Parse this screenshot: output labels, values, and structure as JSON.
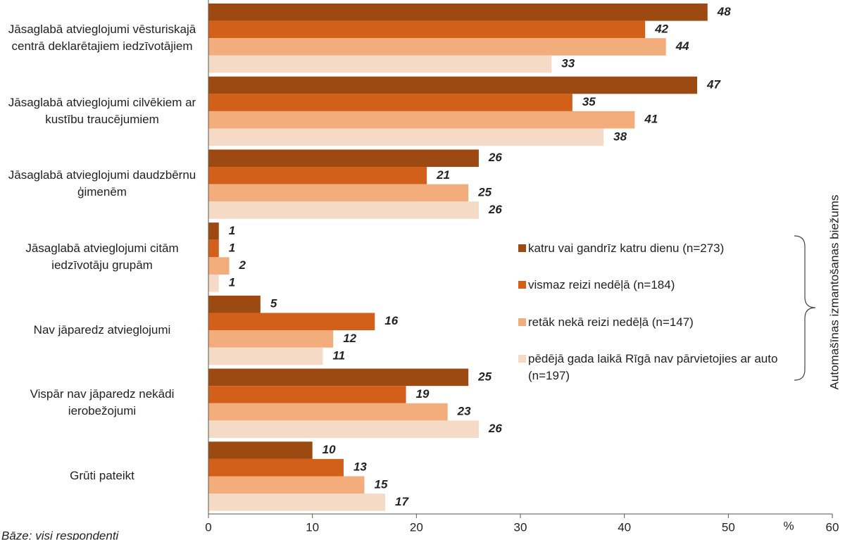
{
  "chart_data": {
    "type": "bar",
    "orientation": "horizontal",
    "categories": [
      "Jāsaglabā atvieglojumi vēsturiskajā centrā deklarētajiem iedzīvotājiem",
      "Jāsaglabā atvieglojumi cilvēkiem ar kustību traucējumiem",
      "Jāsaglabā atvieglojumi daudzbērnu ģimenēm",
      "Jāsaglabā atvieglojumi citām iedzīvotāju grupām",
      "Nav jāparedz atvieglojumi",
      "Vispār nav jāparedz nekādi ierobežojumi",
      "Grūti pateikt"
    ],
    "series": [
      {
        "name": "katru vai gandrīz katru dienu (n=273)",
        "color": "#9c4a12",
        "values": [
          48,
          47,
          26,
          1,
          5,
          25,
          10
        ]
      },
      {
        "name": "vismaz reizi nedēļā (n=184)",
        "color": "#d2601a",
        "values": [
          42,
          35,
          21,
          1,
          16,
          19,
          13
        ]
      },
      {
        "name": "retāk nekā reizi nedēļā (n=147)",
        "color": "#f3ac7c",
        "values": [
          44,
          41,
          25,
          2,
          12,
          23,
          15
        ]
      },
      {
        "name": "pēdējā gada laikā Rīgā nav pārvietojies ar auto (n=197)",
        "color": "#f5dbc5",
        "values": [
          33,
          38,
          26,
          1,
          11,
          26,
          17
        ]
      }
    ],
    "xlim": [
      0,
      60
    ],
    "xticks": [
      0,
      10,
      20,
      30,
      40,
      50,
      60
    ],
    "x_label": "%",
    "legend_title": "Automašīnas izmantošanas biežums",
    "note": "Bāze: visi respondenti"
  }
}
